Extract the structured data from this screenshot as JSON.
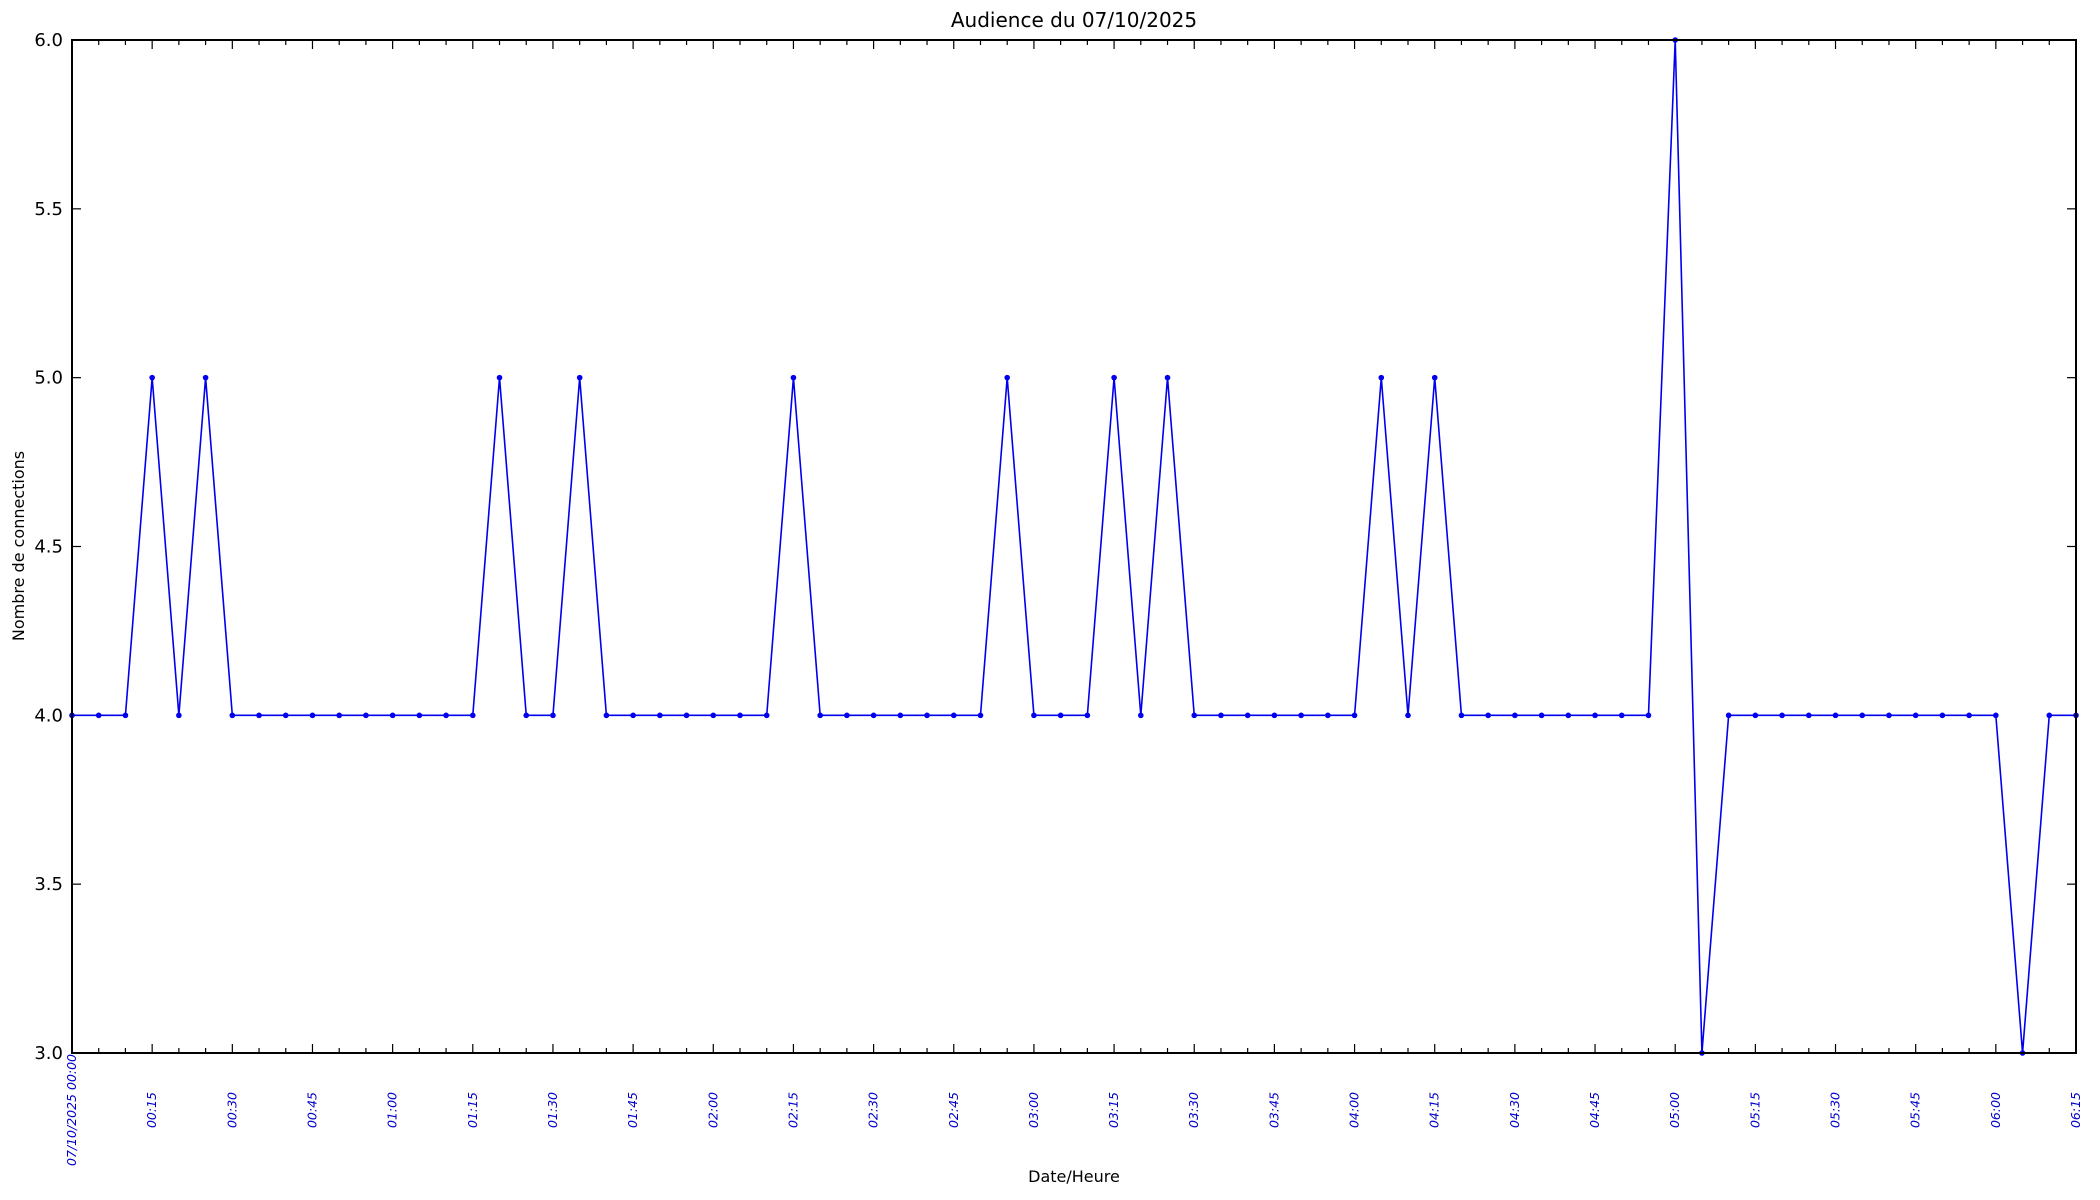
{
  "page": {
    "background": "#ffffff"
  },
  "chart": {
    "title": "Audience du 07/10/2025",
    "xlabel": "Date/Heure",
    "ylabel": "Nombre de connections"
  },
  "chart_data": {
    "type": "line",
    "title": "Audience du 07/10/2025",
    "xlabel": "Date/Heure",
    "ylabel": "Nombre de connections",
    "x": [
      "07/10/2025 00:00",
      "00:05",
      "00:10",
      "00:15",
      "00:20",
      "00:25",
      "00:30",
      "00:35",
      "00:40",
      "00:45",
      "00:50",
      "00:55",
      "01:00",
      "01:05",
      "01:10",
      "01:15",
      "01:20",
      "01:25",
      "01:30",
      "01:35",
      "01:40",
      "01:45",
      "01:50",
      "01:55",
      "02:00",
      "02:05",
      "02:10",
      "02:15",
      "02:20",
      "02:25",
      "02:30",
      "02:35",
      "02:40",
      "02:45",
      "02:50",
      "02:55",
      "03:00",
      "03:05",
      "03:10",
      "03:15",
      "03:20",
      "03:25",
      "03:30",
      "03:35",
      "03:40",
      "03:45",
      "03:50",
      "03:55",
      "04:00",
      "04:05",
      "04:10",
      "04:15",
      "04:20",
      "04:25",
      "04:30",
      "04:35",
      "04:40",
      "04:45",
      "04:50",
      "04:55",
      "05:00",
      "05:05",
      "05:10",
      "05:15",
      "05:20",
      "05:25",
      "05:30",
      "05:35",
      "05:40",
      "05:45",
      "05:50",
      "05:55",
      "06:00",
      "06:05",
      "06:10",
      "06:15"
    ],
    "values": [
      4,
      4,
      4,
      5,
      4,
      5,
      4,
      4,
      4,
      4,
      4,
      4,
      4,
      4,
      4,
      4,
      5,
      4,
      4,
      5,
      4,
      4,
      4,
      4,
      4,
      4,
      4,
      5,
      4,
      4,
      4,
      4,
      4,
      4,
      4,
      5,
      4,
      4,
      4,
      5,
      4,
      5,
      4,
      4,
      4,
      4,
      4,
      4,
      4,
      5,
      4,
      5,
      4,
      4,
      4,
      4,
      4,
      4,
      4,
      4,
      6,
      3,
      4,
      4,
      4,
      4,
      4,
      4,
      4,
      4,
      4,
      4,
      4,
      3,
      4,
      4
    ],
    "x_major_tick_every": 3,
    "y_ticks": [
      3.0,
      3.5,
      4.0,
      4.5,
      5.0,
      5.5,
      6.0
    ],
    "y_tick_labels": [
      "3.0",
      "3.5",
      "4.0",
      "4.5",
      "5.0",
      "5.5",
      "6.0"
    ],
    "ylim": [
      3.0,
      6.0
    ],
    "line_color": "#0000ee",
    "marker": "circle",
    "tick_label_color": "#0000cc",
    "axis_color": "#000000",
    "grid": false,
    "legend_position": "none"
  }
}
